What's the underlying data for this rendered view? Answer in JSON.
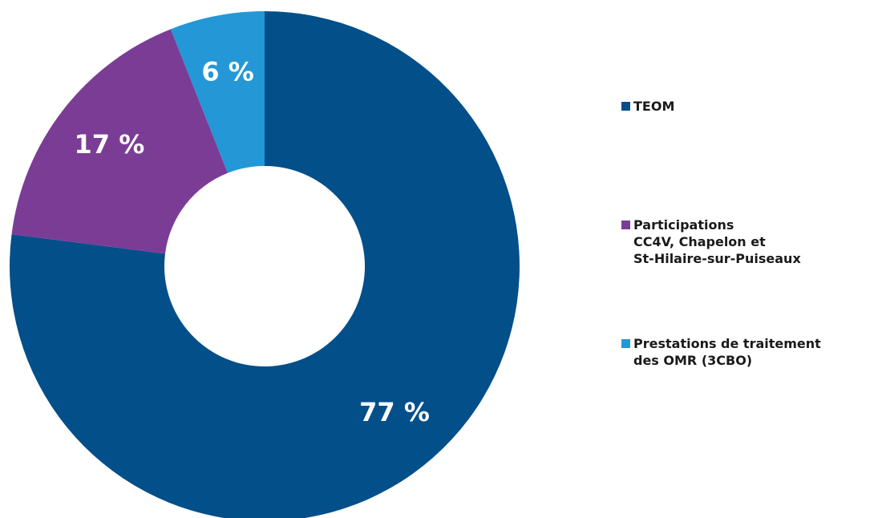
{
  "chart_data": {
    "type": "donut",
    "categories": [
      "TEOM",
      "Participations\nCC4V, Chapelon et\nSt-Hilaire-sur-Puiseaux",
      "Prestations de traitement\ndes OMR (3CBO)"
    ],
    "values": [
      77,
      17,
      6
    ],
    "value_labels": [
      "77 %",
      "17 %",
      "6 %"
    ],
    "colors": [
      "#034f8a",
      "#7b3c96",
      "#2497d6"
    ],
    "legend": "right"
  }
}
